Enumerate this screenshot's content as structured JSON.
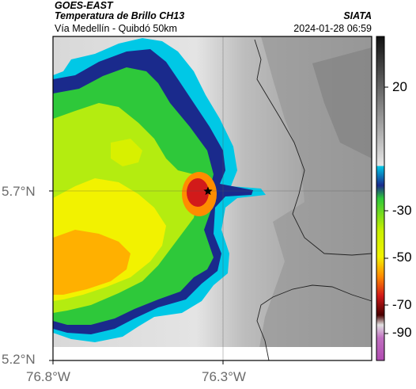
{
  "header": {
    "satellite": "GOES-EAST",
    "product": "Temperatura de Brillo CH13",
    "region": "Vía Medellín - Quibdó 50km",
    "institution": "SIATA",
    "datetime": "2024-01-28 06:59"
  },
  "axes": {
    "y_ticks": [
      "5.7°N",
      "5.2°N"
    ],
    "x_ticks": [
      "76.8°W",
      "76.3°W"
    ]
  },
  "marker": {
    "icon": "star-icon",
    "color": "#000000"
  },
  "colorbar": {
    "tick_labels": [
      "20",
      "-30",
      "-50",
      "-70",
      "-90"
    ],
    "colors": {
      "warm_top": "#111111",
      "warm_bottom": "#e6e6e6",
      "cyan": "#00c8e6",
      "blue": "#1a2a8c",
      "green": "#2ec83a",
      "yellow": "#f2f200",
      "orange": "#ff8c00",
      "red": "#d21a1a",
      "dark_red": "#4a0000",
      "magenta": "#b04ab0"
    }
  }
}
